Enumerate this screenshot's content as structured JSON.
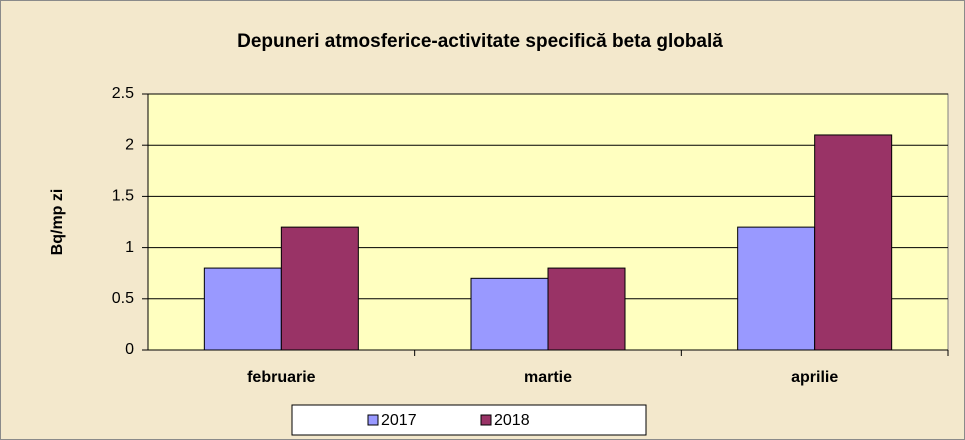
{
  "chart_data": {
    "type": "bar",
    "title": "Depuneri atmosferice-activitate specifică beta globală",
    "y_label": "Bq/mp zi",
    "categories": [
      "februarie",
      "martie",
      "aprilie"
    ],
    "series": [
      {
        "name": "2017",
        "color": "#9999ff",
        "values": [
          0.8,
          0.7,
          1.2
        ]
      },
      {
        "name": "2018",
        "color": "#993366",
        "values": [
          1.2,
          0.8,
          2.1
        ]
      }
    ],
    "ylim": [
      0,
      2.5
    ],
    "yticks": [
      0,
      0.5,
      1,
      1.5,
      2,
      2.5
    ],
    "grid": true,
    "legend": "bottom"
  }
}
